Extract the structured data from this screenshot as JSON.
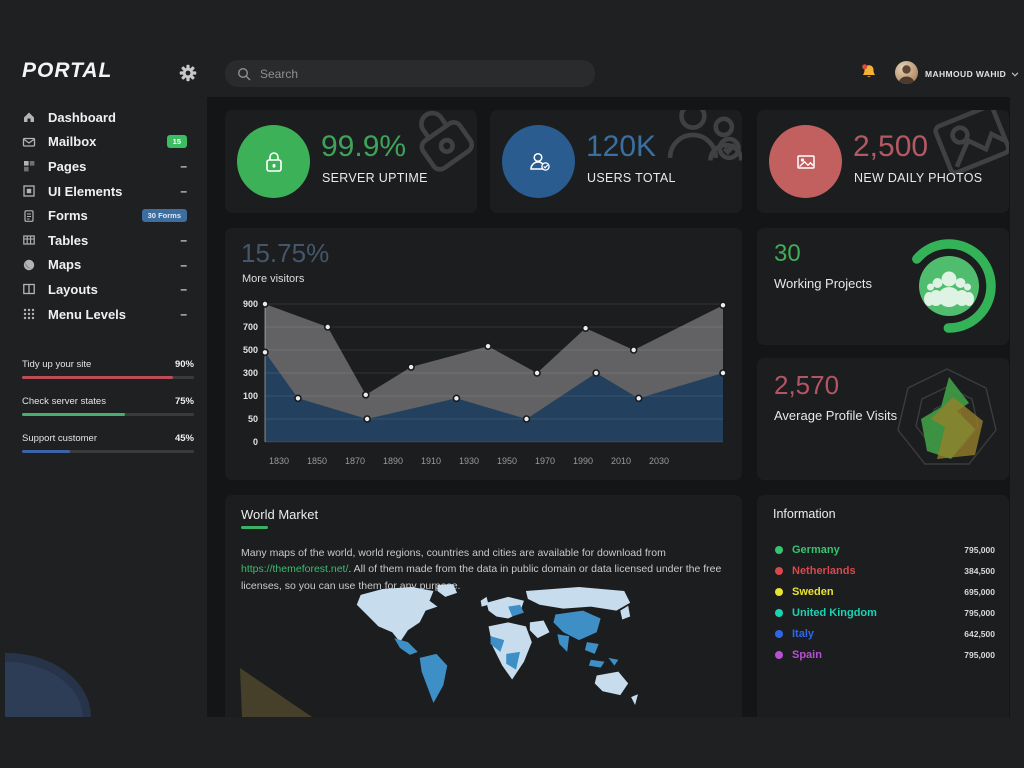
{
  "app": {
    "brand": "PORTAL"
  },
  "topbar": {
    "search_placeholder": "Search",
    "user_name": "MAHMOUD WAHID"
  },
  "sidebar": {
    "collapse_glyph": "–",
    "items": [
      {
        "label": "Dashboard",
        "icon": "home-icon"
      },
      {
        "label": "Mailbox",
        "icon": "mail-icon",
        "badge": "15",
        "badge_color": "#3dbd61"
      },
      {
        "label": "Pages",
        "icon": "pages-icon",
        "collapsible": true
      },
      {
        "label": "UI Elements",
        "icon": "ui-elements-icon",
        "collapsible": true
      },
      {
        "label": "Forms",
        "icon": "forms-icon",
        "badge": "30 Forms",
        "badge_color": "#3e6da0"
      },
      {
        "label": "Tables",
        "icon": "tables-icon",
        "collapsible": true
      },
      {
        "label": "Maps",
        "icon": "globe-icon",
        "collapsible": true
      },
      {
        "label": "Layouts",
        "icon": "layouts-icon",
        "collapsible": true
      },
      {
        "label": "Menu Levels",
        "icon": "menu-levels-icon",
        "collapsible": true
      }
    ],
    "progress": [
      {
        "label": "Tidy up your site",
        "value": "90%",
        "bar_pct": 88,
        "color": "#bc4c58"
      },
      {
        "label": "Check server states",
        "value": "75%",
        "bar_pct": 60,
        "color": "#49ad71"
      },
      {
        "label": "Support customer",
        "value": "45%",
        "bar_pct": 28,
        "color": "#3c62a8"
      }
    ]
  },
  "stats": [
    {
      "value": "99.9%",
      "label": "SERVER UPTIME",
      "value_color": "#3ea35a",
      "circle_color": "#3cb158",
      "icon": "lock-icon"
    },
    {
      "value": "120K",
      "label": "USERS TOTAL",
      "value_color": "#3a6f9f",
      "circle_color": "#2a5c90",
      "icon": "users-icon"
    },
    {
      "value": "2,500",
      "label": "NEW DAILY PHOTOS",
      "value_color": "#b25964",
      "circle_color": "#c26060",
      "icon": "photo-icon"
    }
  ],
  "chart_data": {
    "type": "area",
    "title": "15.75%",
    "subtitle": "More visitors",
    "y_ticks": [
      0,
      50,
      100,
      300,
      500,
      700,
      900
    ],
    "y_axis_note": "ticks evenly spaced (non-linear scale)",
    "x_ticks": [
      "1830",
      "1850",
      "1870",
      "1890",
      "1910",
      "1930",
      "1950",
      "1970",
      "1990",
      "2010",
      "2030"
    ],
    "grid": true,
    "series": [
      {
        "name": "visitors-upper",
        "color": "#6e6e71",
        "fill_opacity": 0.85,
        "points": [
          {
            "x": 0,
            "v": 900
          },
          {
            "x": 0.137,
            "v": 700
          },
          {
            "x": 0.22,
            "v": 110
          },
          {
            "x": 0.319,
            "v": 352
          },
          {
            "x": 0.487,
            "v": 533
          },
          {
            "x": 0.594,
            "v": 300
          },
          {
            "x": 0.7,
            "v": 690
          },
          {
            "x": 0.805,
            "v": 500
          },
          {
            "x": 1,
            "v": 890
          }
        ]
      },
      {
        "name": "visitors-lower",
        "color": "#23405e",
        "fill_opacity": 1,
        "points": [
          {
            "x": 0,
            "v": 480
          },
          {
            "x": 0.072,
            "v": 95
          },
          {
            "x": 0.223,
            "v": 50
          },
          {
            "x": 0.418,
            "v": 95
          },
          {
            "x": 0.571,
            "v": 50
          },
          {
            "x": 0.723,
            "v": 300
          },
          {
            "x": 0.816,
            "v": 95
          },
          {
            "x": 1,
            "v": 300
          }
        ]
      }
    ]
  },
  "projects_card": {
    "value": "30",
    "label": "Working Projects",
    "value_color": "#3fae57",
    "accent": "#34b257"
  },
  "visits_card": {
    "value": "2,570",
    "label": "Average Profile Visits",
    "value_color": "#b25564"
  },
  "world_market": {
    "title": "World Market",
    "accent": "#3bb261",
    "text_before_link": "Many maps of the world, world regions, countries and cities are available for download from ",
    "link": "https://themeforest.net/",
    "link_color": "#3dbb6e",
    "text_after_link": ". All of them made from the data in public domain or data licensed under the free licenses, so you can use them for any purpose.",
    "map_colors": {
      "land": "#c7ddee",
      "highlight": "#3d8fc6"
    }
  },
  "information": {
    "title": "Information",
    "countries": [
      {
        "label": "Germany",
        "value": "795,000",
        "color": "#35c46f"
      },
      {
        "label": "Netherlands",
        "value": "384,500",
        "color": "#d6494d"
      },
      {
        "label": "Sweden",
        "value": "695,000",
        "color": "#e8e332"
      },
      {
        "label": "United Kingdom",
        "value": "795,000",
        "color": "#18d4b4"
      },
      {
        "label": "Italy",
        "value": "642,500",
        "color": "#2f66e8"
      },
      {
        "label": "Spain",
        "value": "795,000",
        "color": "#b94fd4"
      }
    ]
  }
}
